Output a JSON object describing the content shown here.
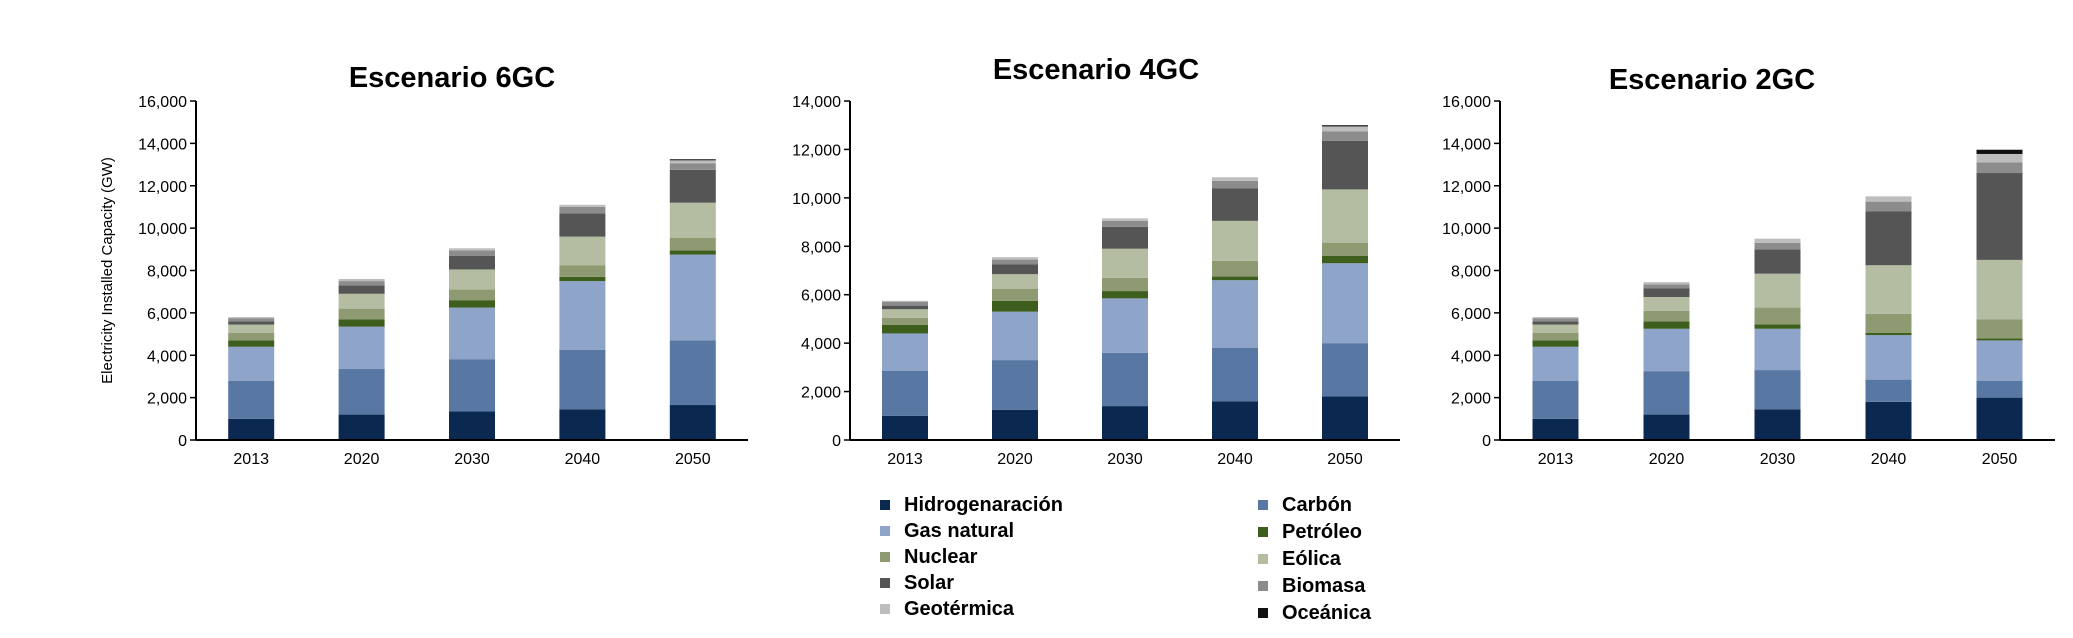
{
  "chart_data": [
    {
      "type": "bar",
      "stacked": true,
      "title": "Escenario 6GC",
      "ylabel": "Electricity Installed Capacity (GW)",
      "xlabel": "",
      "ylim": [
        0,
        16000
      ],
      "ytick_labels": [
        "0",
        "2,000",
        "4,000",
        "6,000",
        "8,000",
        "10,000",
        "12,000",
        "14,000",
        "16,000"
      ],
      "categories": [
        "2013",
        "2020",
        "2030",
        "2040",
        "2050"
      ],
      "series": [
        {
          "name": "Hidrogenaración",
          "values": [
            1000,
            1200,
            1350,
            1450,
            1650
          ]
        },
        {
          "name": "Carbón",
          "values": [
            1800,
            2150,
            2450,
            2800,
            3050
          ]
        },
        {
          "name": "Gas natural",
          "values": [
            1600,
            2000,
            2450,
            3250,
            4050
          ]
        },
        {
          "name": "Petróleo",
          "values": [
            300,
            350,
            350,
            200,
            200
          ]
        },
        {
          "name": "Nuclear",
          "values": [
            350,
            500,
            500,
            550,
            600
          ]
        },
        {
          "name": "Eólica",
          "values": [
            400,
            700,
            950,
            1350,
            1650
          ]
        },
        {
          "name": "Solar",
          "values": [
            150,
            400,
            650,
            1100,
            1550
          ]
        },
        {
          "name": "Biomasa",
          "values": [
            150,
            200,
            250,
            300,
            300
          ]
        },
        {
          "name": "Geotérmica",
          "values": [
            50,
            100,
            100,
            100,
            150
          ]
        },
        {
          "name": "Oceánica",
          "values": [
            0,
            0,
            0,
            0,
            50
          ]
        }
      ]
    },
    {
      "type": "bar",
      "stacked": true,
      "title": "Escenario 4GC",
      "ylabel": "",
      "xlabel": "",
      "ylim": [
        0,
        14000
      ],
      "ytick_labels": [
        "0",
        "2,000",
        "4,000",
        "6,000",
        "8,000",
        "10,000",
        "12,000",
        "14,000"
      ],
      "categories": [
        "2013",
        "2020",
        "2030",
        "2040",
        "2050"
      ],
      "series": [
        {
          "name": "Hidrogenaración",
          "values": [
            1000,
            1250,
            1400,
            1600,
            1800
          ]
        },
        {
          "name": "Carbón",
          "values": [
            1850,
            2050,
            2200,
            2200,
            2200
          ]
        },
        {
          "name": "Gas natural",
          "values": [
            1550,
            2000,
            2250,
            2800,
            3300
          ]
        },
        {
          "name": "Petróleo",
          "values": [
            350,
            450,
            300,
            150,
            300
          ]
        },
        {
          "name": "Nuclear",
          "values": [
            300,
            500,
            550,
            650,
            550
          ]
        },
        {
          "name": "Eólica",
          "values": [
            350,
            600,
            1200,
            1650,
            2200
          ]
        },
        {
          "name": "Solar",
          "values": [
            150,
            400,
            900,
            1350,
            2000
          ]
        },
        {
          "name": "Biomasa",
          "values": [
            150,
            200,
            250,
            300,
            400
          ]
        },
        {
          "name": "Geotérmica",
          "values": [
            50,
            100,
            100,
            150,
            200
          ]
        },
        {
          "name": "Oceánica",
          "values": [
            0,
            0,
            0,
            0,
            50
          ]
        }
      ]
    },
    {
      "type": "bar",
      "stacked": true,
      "title": "Escenario 2GC",
      "ylabel": "",
      "xlabel": "",
      "ylim": [
        0,
        16000
      ],
      "ytick_labels": [
        "0",
        "2,000",
        "4,000",
        "6,000",
        "8,000",
        "10,000",
        "12,000",
        "14,000",
        "16,000"
      ],
      "categories": [
        "2013",
        "2020",
        "2030",
        "2040",
        "2050"
      ],
      "series": [
        {
          "name": "Hidrogenaración",
          "values": [
            1000,
            1200,
            1450,
            1800,
            2000
          ]
        },
        {
          "name": "Carbón",
          "values": [
            1800,
            2050,
            1850,
            1050,
            800
          ]
        },
        {
          "name": "Gas natural",
          "values": [
            1600,
            2000,
            1950,
            2100,
            1900
          ]
        },
        {
          "name": "Petróleo",
          "values": [
            300,
            350,
            200,
            100,
            100
          ]
        },
        {
          "name": "Nuclear",
          "values": [
            350,
            500,
            800,
            900,
            900
          ]
        },
        {
          "name": "Eólica",
          "values": [
            400,
            650,
            1600,
            2300,
            2800
          ]
        },
        {
          "name": "Solar",
          "values": [
            150,
            400,
            1150,
            2550,
            4100
          ]
        },
        {
          "name": "Biomasa",
          "values": [
            150,
            200,
            300,
            450,
            500
          ]
        },
        {
          "name": "Geotérmica",
          "values": [
            50,
            100,
            200,
            250,
            400
          ]
        },
        {
          "name": "Oceánica",
          "values": [
            0,
            0,
            0,
            0,
            200
          ]
        }
      ]
    }
  ],
  "series_colors": {
    "Hidrogenaración": "#0b2850",
    "Carbón": "#5877a3",
    "Gas natural": "#8ea4c8",
    "Petróleo": "#3e5e1e",
    "Nuclear": "#8e9a72",
    "Eólica": "#b4bca1",
    "Solar": "#555555",
    "Biomasa": "#8c8c8c",
    "Geotérmica": "#bdbdbd",
    "Oceánica": "#111111"
  },
  "legend": {
    "items": [
      {
        "label": "Hidrogenaración",
        "color": "#0b2850"
      },
      {
        "label": "Carbón",
        "color": "#5877a3"
      },
      {
        "label": "Gas natural",
        "color": "#8ea4c8"
      },
      {
        "label": "Petróleo",
        "color": "#3e5e1e"
      },
      {
        "label": "Nuclear",
        "color": "#8e9a72"
      },
      {
        "label": "Eólica",
        "color": "#b4bca1"
      },
      {
        "label": "Solar",
        "color": "#555555"
      },
      {
        "label": "Biomasa",
        "color": "#8c8c8c"
      },
      {
        "label": "Geotérmica",
        "color": "#bdbdbd"
      },
      {
        "label": "Oceánica",
        "color": "#111111"
      }
    ]
  }
}
